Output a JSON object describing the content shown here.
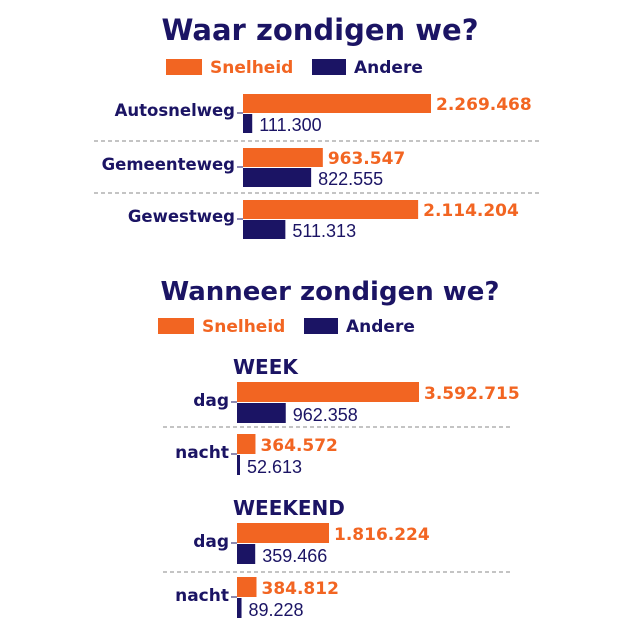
{
  "colors": {
    "speed": "#F26522",
    "other": "#1B1464",
    "divider": "#8a8a8a"
  },
  "chart_data": [
    {
      "type": "bar",
      "orientation": "horizontal",
      "title": "Waar zondigen we?",
      "legend": [
        "Snelheid",
        "Andere"
      ],
      "categories": [
        "Autosnelweg",
        "Gemeenteweg",
        "Gewestweg"
      ],
      "series": [
        {
          "name": "Snelheid",
          "values": [
            2269468,
            963547,
            2114204
          ],
          "labels": [
            "2.269.468",
            "963.547",
            "2.114.204"
          ]
        },
        {
          "name": "Andere",
          "values": [
            111300,
            822555,
            511313
          ],
          "labels": [
            "111.300",
            "822.555",
            "511.313"
          ]
        }
      ]
    },
    {
      "type": "bar",
      "orientation": "horizontal",
      "title": "Wanneer zondigen we?",
      "legend": [
        "Snelheid",
        "Andere"
      ],
      "groups": [
        {
          "label": "WEEK",
          "categories": [
            "dag",
            "nacht"
          ],
          "series": [
            {
              "name": "Snelheid",
              "values": [
                3592715,
                364572
              ],
              "labels": [
                "3.592.715",
                "364.572"
              ]
            },
            {
              "name": "Andere",
              "values": [
                962358,
                52613
              ],
              "labels": [
                "962.358",
                "52.613"
              ]
            }
          ]
        },
        {
          "label": "WEEKEND",
          "categories": [
            "dag",
            "nacht"
          ],
          "series": [
            {
              "name": "Snelheid",
              "values": [
                1816224,
                384812
              ],
              "labels": [
                "1.816.224",
                "384.812"
              ]
            },
            {
              "name": "Andere",
              "values": [
                359466,
                89228
              ],
              "labels": [
                "359.466",
                "89.228"
              ]
            }
          ]
        }
      ]
    }
  ]
}
